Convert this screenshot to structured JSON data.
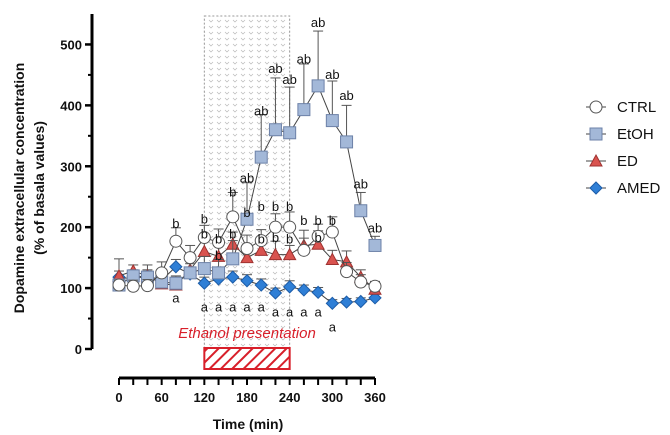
{
  "chart_data": {
    "type": "line",
    "xlabel": "Time (min)",
    "ylabel_line1": "Dopamine extracellular concentration",
    "ylabel_line2": "(% of basala values)",
    "xlim": [
      0,
      360
    ],
    "ylim": [
      0,
      550
    ],
    "x_ticks": [
      0,
      60,
      120,
      180,
      240,
      300,
      360
    ],
    "y_ticks": [
      0,
      100,
      200,
      300,
      400,
      500
    ],
    "x": [
      0,
      20,
      40,
      60,
      80,
      100,
      120,
      140,
      160,
      180,
      200,
      220,
      240,
      260,
      280,
      300,
      320,
      340,
      360
    ],
    "series": [
      {
        "name": "CTRL",
        "marker": "circle",
        "color": "#ffffff",
        "values": [
          105,
          103,
          104,
          125,
          177,
          150,
          183,
          175,
          217,
          165,
          178,
          200,
          200,
          162,
          185,
          192,
          127,
          110,
          103
        ],
        "errors": [
          8,
          10,
          10,
          18,
          22,
          20,
          20,
          22,
          40,
          22,
          18,
          22,
          25,
          20,
          20,
          25,
          15,
          12,
          8
        ]
      },
      {
        "name": "EtOH",
        "marker": "square",
        "color": "#a3b8d8",
        "values": [
          105,
          120,
          118,
          110,
          108,
          125,
          132,
          125,
          148,
          213,
          315,
          360,
          355,
          393,
          432,
          375,
          340,
          227,
          170
        ],
        "errors": [
          8,
          10,
          10,
          12,
          10,
          15,
          20,
          22,
          30,
          60,
          70,
          85,
          75,
          75,
          90,
          65,
          60,
          30,
          15
        ]
      },
      {
        "name": "ED",
        "marker": "triangle",
        "color": "#d9534f",
        "values": [
          120,
          128,
          120,
          107,
          105,
          130,
          160,
          152,
          172,
          150,
          162,
          155,
          155,
          170,
          172,
          147,
          143,
          118,
          98
        ],
        "errors": [
          28,
          10,
          18,
          10,
          15,
          18,
          20,
          20,
          20,
          20,
          20,
          22,
          15,
          25,
          22,
          15,
          18,
          12,
          10
        ]
      },
      {
        "name": "AMED",
        "marker": "diamond",
        "color": "#2f7fd6",
        "values": [
          118,
          115,
          120,
          113,
          135,
          123,
          108,
          115,
          118,
          112,
          105,
          92,
          102,
          97,
          93,
          75,
          77,
          78,
          84
        ],
        "errors": [
          10,
          8,
          10,
          10,
          12,
          10,
          10,
          10,
          10,
          10,
          10,
          8,
          10,
          8,
          8,
          6,
          6,
          6,
          6
        ]
      }
    ],
    "legend_position": "right",
    "presentation": {
      "label": "Ethanol presentation",
      "x_start": 120,
      "x_end": 240,
      "color": "#d81f2a"
    },
    "significance_labels": [
      {
        "text": "b",
        "x": 80,
        "y": 205
      },
      {
        "text": "a",
        "x": 80,
        "y": 83
      },
      {
        "text": "b",
        "x": 120,
        "y": 213
      },
      {
        "text": "b",
        "x": 120,
        "y": 188
      },
      {
        "text": "a",
        "x": 120,
        "y": 68
      },
      {
        "text": "b",
        "x": 140,
        "y": 180
      },
      {
        "text": "b",
        "x": 140,
        "y": 153
      },
      {
        "text": "a",
        "x": 140,
        "y": 68
      },
      {
        "text": "b",
        "x": 160,
        "y": 257
      },
      {
        "text": "b",
        "x": 160,
        "y": 188
      },
      {
        "text": "a",
        "x": 160,
        "y": 68
      },
      {
        "text": "ab",
        "x": 180,
        "y": 280
      },
      {
        "text": "b",
        "x": 180,
        "y": 223
      },
      {
        "text": "a",
        "x": 180,
        "y": 68
      },
      {
        "text": "ab",
        "x": 200,
        "y": 390
      },
      {
        "text": "b",
        "x": 200,
        "y": 233
      },
      {
        "text": "b",
        "x": 200,
        "y": 180
      },
      {
        "text": "a",
        "x": 200,
        "y": 68
      },
      {
        "text": "ab",
        "x": 220,
        "y": 460
      },
      {
        "text": "b",
        "x": 220,
        "y": 233
      },
      {
        "text": "b",
        "x": 220,
        "y": 182
      },
      {
        "text": "a",
        "x": 220,
        "y": 60
      },
      {
        "text": "ab",
        "x": 240,
        "y": 442
      },
      {
        "text": "b",
        "x": 240,
        "y": 233
      },
      {
        "text": "b",
        "x": 240,
        "y": 180
      },
      {
        "text": "a",
        "x": 240,
        "y": 60
      },
      {
        "text": "ab",
        "x": 260,
        "y": 475
      },
      {
        "text": "b",
        "x": 260,
        "y": 210
      },
      {
        "text": "a",
        "x": 260,
        "y": 60
      },
      {
        "text": "ab",
        "x": 280,
        "y": 535
      },
      {
        "text": "b",
        "x": 280,
        "y": 210
      },
      {
        "text": "b",
        "x": 280,
        "y": 182
      },
      {
        "text": "a",
        "x": 280,
        "y": 60
      },
      {
        "text": "ab",
        "x": 300,
        "y": 450
      },
      {
        "text": "b",
        "x": 300,
        "y": 210
      },
      {
        "text": "a",
        "x": 300,
        "y": 35
      },
      {
        "text": "ab",
        "x": 320,
        "y": 415
      },
      {
        "text": "ab",
        "x": 340,
        "y": 270
      },
      {
        "text": "ab",
        "x": 360,
        "y": 198
      }
    ]
  }
}
